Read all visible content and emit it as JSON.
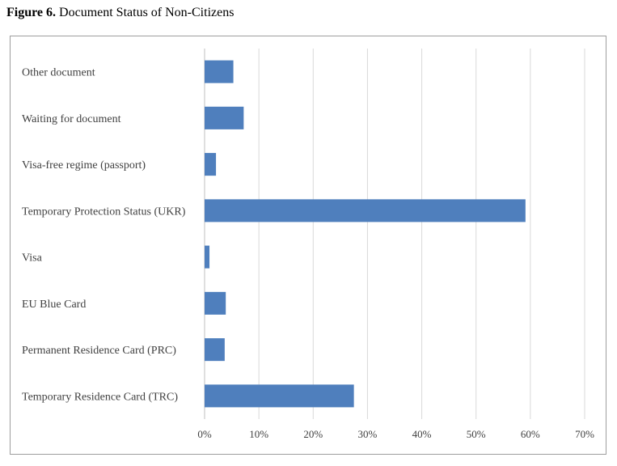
{
  "caption": {
    "lead": "Figure 6.",
    "text": "Document Status of Non-Citizens"
  },
  "chart_data": {
    "type": "bar",
    "orientation": "horizontal",
    "title": "Document Status of Non-Citizens",
    "categories": [
      "Other document",
      "Waiting for document",
      "Visa-free regime (passport)",
      "Temporary Protection Status (UKR)",
      "Visa",
      "EU Blue Card",
      "Permanent Residence Card (PRC)",
      "Temporary Residence Card (TRC)"
    ],
    "values": [
      5.3,
      7.2,
      2.1,
      59.1,
      0.9,
      3.9,
      3.7,
      27.5
    ],
    "xlim": [
      0,
      70
    ],
    "xticks": [
      "0%",
      "10%",
      "20%",
      "30%",
      "40%",
      "50%",
      "60%",
      "70%"
    ],
    "grid": true,
    "legend": "none",
    "bar_color": "#4f7fbd",
    "grid_color": "#d9d9d9"
  }
}
